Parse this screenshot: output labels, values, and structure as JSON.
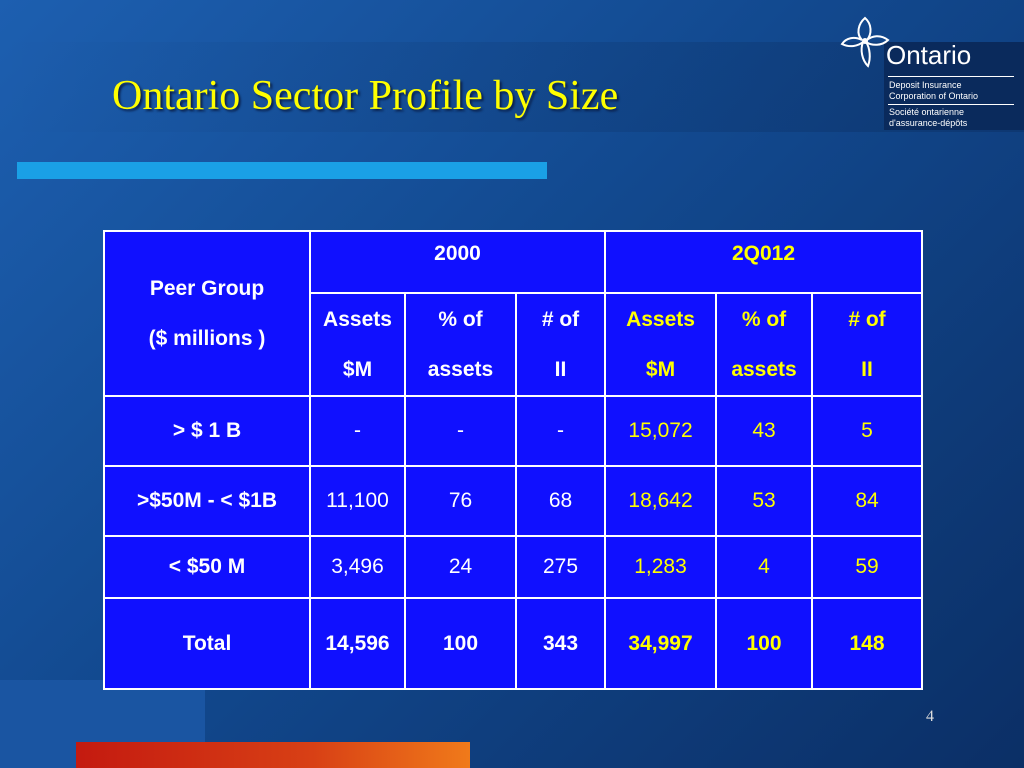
{
  "slide": {
    "title": "Ontario Sector Profile by Size",
    "number": "4"
  },
  "logo": {
    "name": "Ontario",
    "english_line1": "Deposit Insurance",
    "english_line2": "Corporation of Ontario",
    "french_line1": "Société ontarienne",
    "french_line2": "d'assurance-dépôts"
  },
  "table": {
    "peer_group_header": [
      "Peer Group",
      "($ millions )"
    ],
    "periods": [
      "2000",
      "2Q012"
    ],
    "subheaders": [
      {
        "line1": "Assets",
        "line2": "$M"
      },
      {
        "line1": "% of",
        "line2": "assets"
      },
      {
        "line1": "# of",
        "line2": "II"
      }
    ],
    "rows": [
      {
        "label": "> $ 1 B",
        "y2000": [
          "-",
          "-",
          "-"
        ],
        "y2012": [
          "15,072",
          "43",
          "5"
        ]
      },
      {
        "label": ">$50M - < $1B",
        "y2000": [
          "11,100",
          "76",
          "68"
        ],
        "y2012": [
          "18,642",
          "53",
          "84"
        ]
      },
      {
        "label": "< $50 M",
        "y2000": [
          "3,496",
          "24",
          "275"
        ],
        "y2012": [
          "1,283",
          "4",
          "59"
        ]
      },
      {
        "label": "Total",
        "y2000": [
          "14,596",
          "100",
          "343"
        ],
        "y2012": [
          "34,997",
          "100",
          "148"
        ]
      }
    ]
  },
  "colors": {
    "background": "#12498f",
    "title": "#ffff00",
    "table_fill": "#1010ff",
    "accent_rule": "#1aa0e6",
    "bottom_bar": "#c41a10"
  }
}
